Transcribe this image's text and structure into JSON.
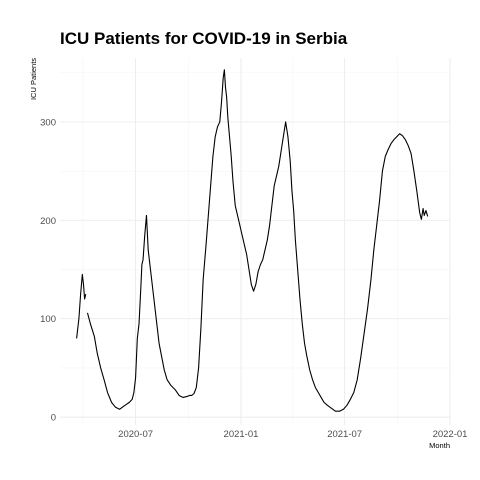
{
  "chart_data": {
    "type": "line",
    "title": "ICU Patients for COVID-19 in Serbia",
    "xlabel": "Month",
    "ylabel": "ICU Patients",
    "x_type": "date",
    "xlim": [
      "2020-02-20",
      "2022-01-01"
    ],
    "ylim": [
      -8,
      365
    ],
    "y_ticks": [
      0,
      100,
      200,
      300
    ],
    "x_ticks": [
      {
        "date": "2020-07-01",
        "label": "2020-07"
      },
      {
        "date": "2021-01-01",
        "label": "2021-01"
      },
      {
        "date": "2021-07-01",
        "label": "2021-07"
      },
      {
        "date": "2022-01-01",
        "label": "2022-01"
      }
    ],
    "grid": true,
    "legend": "none",
    "line_color": "#000000",
    "series": [
      {
        "segments": [
          {
            "x": [
              "2020-03-20",
              "2020-03-24",
              "2020-03-27",
              "2020-03-30",
              "2020-04-01",
              "2020-04-03",
              "2020-04-05"
            ],
            "y": [
              80,
              100,
              125,
              145,
              135,
              120,
              125
            ]
          },
          {
            "x": [
              "2020-04-08",
              "2020-04-13",
              "2020-04-20",
              "2020-04-25",
              "2020-05-01",
              "2020-05-07",
              "2020-05-13",
              "2020-05-20",
              "2020-05-27",
              "2020-06-03",
              "2020-06-10",
              "2020-06-15",
              "2020-06-20",
              "2020-06-25",
              "2020-06-28",
              "2020-07-01",
              "2020-07-04",
              "2020-07-07",
              "2020-07-10",
              "2020-07-12",
              "2020-07-14",
              "2020-07-17",
              "2020-07-20",
              "2020-07-23",
              "2020-07-27",
              "2020-08-01",
              "2020-08-06",
              "2020-08-11",
              "2020-08-16",
              "2020-08-20",
              "2020-08-25",
              "2020-09-01",
              "2020-09-08",
              "2020-09-15",
              "2020-09-22",
              "2020-09-29",
              "2020-10-03",
              "2020-10-07",
              "2020-10-11",
              "2020-10-15",
              "2020-10-19",
              "2020-10-23",
              "2020-10-27",
              "2020-11-01",
              "2020-11-05",
              "2020-11-09",
              "2020-11-13",
              "2020-11-17",
              "2020-11-21",
              "2020-11-25",
              "2020-11-28",
              "2020-12-01",
              "2020-12-03",
              "2020-12-05",
              "2020-12-07",
              "2020-12-09",
              "2020-12-12",
              "2020-12-15",
              "2020-12-18",
              "2020-12-22",
              "2020-12-26",
              "2020-12-30",
              "2021-01-03",
              "2021-01-07",
              "2021-01-11",
              "2021-01-15",
              "2021-01-19",
              "2021-01-23",
              "2021-01-27",
              "2021-01-31",
              "2021-02-04",
              "2021-02-08",
              "2021-02-12",
              "2021-02-16",
              "2021-02-20",
              "2021-02-24",
              "2021-02-28",
              "2021-03-04",
              "2021-03-08",
              "2021-03-12",
              "2021-03-16",
              "2021-03-20",
              "2021-03-24",
              "2021-03-28",
              "2021-03-31",
              "2021-04-03",
              "2021-04-06",
              "2021-04-10",
              "2021-04-14",
              "2021-04-18",
              "2021-04-22",
              "2021-04-26",
              "2021-05-01",
              "2021-05-06",
              "2021-05-11",
              "2021-05-16",
              "2021-05-21",
              "2021-05-26",
              "2021-06-01",
              "2021-06-08",
              "2021-06-15",
              "2021-06-22",
              "2021-06-29",
              "2021-07-05",
              "2021-07-11",
              "2021-07-17",
              "2021-07-23",
              "2021-07-29",
              "2021-08-04",
              "2021-08-10",
              "2021-08-16",
              "2021-08-21",
              "2021-08-26",
              "2021-08-31",
              "2021-09-05",
              "2021-09-10",
              "2021-09-15",
              "2021-09-20",
              "2021-09-25",
              "2021-09-30",
              "2021-10-05",
              "2021-10-10",
              "2021-10-15",
              "2021-10-20",
              "2021-10-25",
              "2021-10-30",
              "2021-11-04",
              "2021-11-09",
              "2021-11-12",
              "2021-11-15",
              "2021-11-17",
              "2021-11-20",
              "2021-11-23"
            ],
            "y": [
              106,
              95,
              82,
              65,
              50,
              38,
              25,
              15,
              10,
              8,
              11,
              13,
              15,
              18,
              25,
              40,
              80,
              95,
              130,
              155,
              160,
              185,
              205,
              170,
              150,
              125,
              100,
              75,
              60,
              48,
              38,
              32,
              28,
              22,
              20,
              21,
              22,
              22,
              24,
              30,
              50,
              90,
              140,
              175,
              205,
              235,
              265,
              285,
              295,
              300,
              320,
              345,
              353,
              335,
              325,
              305,
              285,
              265,
              240,
              215,
              205,
              195,
              185,
              175,
              165,
              150,
              135,
              128,
              135,
              148,
              155,
              160,
              170,
              180,
              195,
              215,
              235,
              245,
              255,
              270,
              285,
              300,
              285,
              260,
              230,
              210,
              180,
              150,
              120,
              95,
              75,
              62,
              48,
              38,
              30,
              25,
              20,
              15,
              12,
              9,
              6,
              6,
              8,
              12,
              18,
              25,
              38,
              60,
              85,
              110,
              140,
              170,
              195,
              220,
              250,
              265,
              272,
              278,
              282,
              285,
              288,
              286,
              282,
              276,
              268,
              250,
              230,
              208,
              201,
              212,
              205,
              210,
              204
            ]
          }
        ]
      }
    ]
  }
}
